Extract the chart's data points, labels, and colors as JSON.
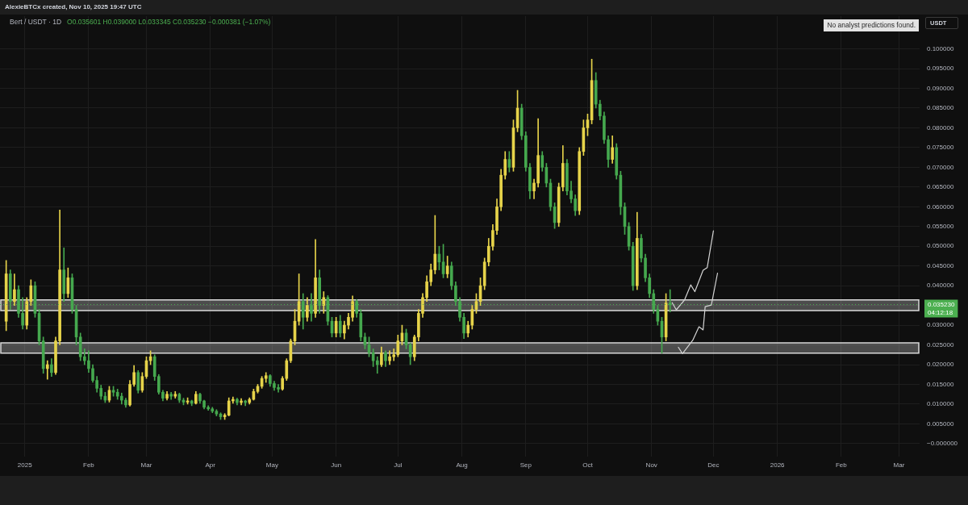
{
  "chart_data": {
    "type": "candlestick",
    "title": "Bert / USDT · 1D",
    "subtitle": "O0.035601 H0.039000 L0.033345 C0.035230 −0.000381 (−1.07%)",
    "ylabel": "USDT",
    "annotations": [
      "AlexieBTCx created, Nov 10, 2025 19:47 UTC",
      "No analyst predictions found."
    ],
    "xlim": [
      "2024-12-20",
      "2026-03-11"
    ],
    "xticks": [
      {
        "value": "2025-01-01",
        "label": "2025"
      },
      {
        "value": "2025-02-01",
        "label": "Feb"
      },
      {
        "value": "2025-03-01",
        "label": "Mar"
      },
      {
        "value": "2025-04-01",
        "label": "Apr"
      },
      {
        "value": "2025-05-01",
        "label": "May"
      },
      {
        "value": "2025-06-01",
        "label": "Jun"
      },
      {
        "value": "2025-07-01",
        "label": "Jul"
      },
      {
        "value": "2025-08-01",
        "label": "Aug"
      },
      {
        "value": "2025-09-01",
        "label": "Sep"
      },
      {
        "value": "2025-10-01",
        "label": "Oct"
      },
      {
        "value": "2025-11-01",
        "label": "Nov"
      },
      {
        "value": "2025-12-01",
        "label": "Dec"
      },
      {
        "value": "2026-01-01",
        "label": "2026"
      },
      {
        "value": "2026-02-01",
        "label": "Feb"
      },
      {
        "value": "2026-03-01",
        "label": "Mar"
      }
    ],
    "ylim": [
      -0.0033,
      0.1083
    ],
    "yticks": [
      {
        "value": 0,
        "label": "−0.000000"
      },
      {
        "value": 0.005,
        "label": "0.005000"
      },
      {
        "value": 0.01,
        "label": "0.010000"
      },
      {
        "value": 0.015,
        "label": "0.015000"
      },
      {
        "value": 0.02,
        "label": "0.020000"
      },
      {
        "value": 0.025,
        "label": "0.025000"
      },
      {
        "value": 0.03,
        "label": "0.030000"
      },
      {
        "value": 0.035,
        "label": null
      },
      {
        "value": 0.04,
        "label": "0.040000"
      },
      {
        "value": 0.045,
        "label": "0.045000"
      },
      {
        "value": 0.05,
        "label": "0.050000"
      },
      {
        "value": 0.055,
        "label": "0.055000"
      },
      {
        "value": 0.06,
        "label": "0.060000"
      },
      {
        "value": 0.065,
        "label": "0.065000"
      },
      {
        "value": 0.07,
        "label": "0.070000"
      },
      {
        "value": 0.075,
        "label": "0.075000"
      },
      {
        "value": 0.08,
        "label": "0.080000"
      },
      {
        "value": 0.085,
        "label": "0.085000"
      },
      {
        "value": 0.09,
        "label": "0.090000"
      },
      {
        "value": 0.095,
        "label": "0.095000"
      },
      {
        "value": 0.1,
        "label": "0.100000"
      }
    ],
    "grid": true,
    "bands": [
      {
        "axis": "y",
        "from": 0.0337,
        "to": 0.0364,
        "color": "#d9d9d9"
      },
      {
        "axis": "y",
        "from": 0.0229,
        "to": 0.0255,
        "color": "#d9d9d9"
      }
    ],
    "ref_lines": [
      {
        "axis": "y",
        "value": 0.03523,
        "label": "0.035230\n04:12:18",
        "color": "#4caf50",
        "line_style": "dotted"
      }
    ],
    "series": [
      {
        "x": [
          "2024-12-23",
          "2024-12-25",
          "2024-12-27",
          "2024-12-29",
          "2024-12-31",
          "2025-01-02",
          "2025-01-04",
          "2025-01-06",
          "2025-01-08",
          "2025-01-10",
          "2025-01-12",
          "2025-01-14",
          "2025-01-16",
          "2025-01-18",
          "2025-01-20",
          "2025-01-22",
          "2025-01-24",
          "2025-01-26",
          "2025-01-28",
          "2025-01-30",
          "2025-02-01",
          "2025-02-03",
          "2025-02-05",
          "2025-02-07",
          "2025-02-09",
          "2025-02-11",
          "2025-02-13",
          "2025-02-15",
          "2025-02-17",
          "2025-02-19",
          "2025-02-21",
          "2025-02-23",
          "2025-02-25",
          "2025-02-27",
          "2025-03-01",
          "2025-03-03",
          "2025-03-05",
          "2025-03-07",
          "2025-03-09",
          "2025-03-11",
          "2025-03-13",
          "2025-03-15",
          "2025-03-17",
          "2025-03-19",
          "2025-03-21",
          "2025-03-23",
          "2025-03-25",
          "2025-03-27",
          "2025-03-29",
          "2025-03-31",
          "2025-04-02",
          "2025-04-04",
          "2025-04-06",
          "2025-04-08",
          "2025-04-10",
          "2025-04-12",
          "2025-04-14",
          "2025-04-16",
          "2025-04-18",
          "2025-04-20",
          "2025-04-22",
          "2025-04-24",
          "2025-04-26",
          "2025-04-28",
          "2025-04-30",
          "2025-05-02",
          "2025-05-04",
          "2025-05-06",
          "2025-05-08",
          "2025-05-10",
          "2025-05-12",
          "2025-05-14",
          "2025-05-16",
          "2025-05-18",
          "2025-05-20",
          "2025-05-22",
          "2025-05-24",
          "2025-05-26",
          "2025-05-28",
          "2025-05-30",
          "2025-06-01",
          "2025-06-03",
          "2025-06-05",
          "2025-06-07",
          "2025-06-09",
          "2025-06-11",
          "2025-06-13",
          "2025-06-15",
          "2025-06-17",
          "2025-06-19",
          "2025-06-21",
          "2025-06-23",
          "2025-06-25",
          "2025-06-27",
          "2025-06-29",
          "2025-07-01",
          "2025-07-03",
          "2025-07-05",
          "2025-07-07",
          "2025-07-09",
          "2025-07-11",
          "2025-07-13",
          "2025-07-15",
          "2025-07-17",
          "2025-07-19",
          "2025-07-21",
          "2025-07-23",
          "2025-07-25",
          "2025-07-27",
          "2025-07-29",
          "2025-07-31",
          "2025-08-02",
          "2025-08-04",
          "2025-08-06",
          "2025-08-08",
          "2025-08-10",
          "2025-08-12",
          "2025-08-14",
          "2025-08-16",
          "2025-08-18",
          "2025-08-20",
          "2025-08-22",
          "2025-08-24",
          "2025-08-26",
          "2025-08-28",
          "2025-08-30",
          "2025-09-01",
          "2025-09-03",
          "2025-09-05",
          "2025-09-07",
          "2025-09-09",
          "2025-09-11",
          "2025-09-13",
          "2025-09-15",
          "2025-09-17",
          "2025-09-19",
          "2025-09-21",
          "2025-09-23",
          "2025-09-25",
          "2025-09-27",
          "2025-09-29",
          "2025-10-01",
          "2025-10-03",
          "2025-10-05",
          "2025-10-07",
          "2025-10-09",
          "2025-10-11",
          "2025-10-13",
          "2025-10-15",
          "2025-10-17",
          "2025-10-19",
          "2025-10-21",
          "2025-10-23",
          "2025-10-25",
          "2025-10-27",
          "2025-10-29",
          "2025-10-31",
          "2025-11-02",
          "2025-11-04",
          "2025-11-06",
          "2025-11-08",
          "2025-11-10"
        ],
        "ohlc": [
          [
            0.031,
            0.0464,
            0.0286,
            0.043
          ],
          [
            0.043,
            0.044,
            0.034,
            0.036
          ],
          [
            0.036,
            0.043,
            0.035,
            0.039
          ],
          [
            0.039,
            0.04,
            0.032,
            0.033
          ],
          [
            0.033,
            0.037,
            0.029,
            0.03
          ],
          [
            0.03,
            0.037,
            0.029,
            0.036
          ],
          [
            0.036,
            0.0415,
            0.035,
            0.04
          ],
          [
            0.04,
            0.041,
            0.032,
            0.033
          ],
          [
            0.033,
            0.034,
            0.025,
            0.026
          ],
          [
            0.026,
            0.027,
            0.0178,
            0.019
          ],
          [
            0.019,
            0.021,
            0.0163,
            0.02
          ],
          [
            0.02,
            0.0215,
            0.017,
            0.018
          ],
          [
            0.018,
            0.027,
            0.0175,
            0.026
          ],
          [
            0.026,
            0.0592,
            0.025,
            0.044
          ],
          [
            0.044,
            0.0496,
            0.036,
            0.038
          ],
          [
            0.038,
            0.0445,
            0.037,
            0.042
          ],
          [
            0.042,
            0.043,
            0.033,
            0.034
          ],
          [
            0.034,
            0.035,
            0.025,
            0.027
          ],
          [
            0.027,
            0.028,
            0.021,
            0.022
          ],
          [
            0.022,
            0.024,
            0.02,
            0.021
          ],
          [
            0.021,
            0.0235,
            0.018,
            0.019
          ],
          [
            0.019,
            0.02,
            0.0155,
            0.016
          ],
          [
            0.016,
            0.017,
            0.013,
            0.014
          ],
          [
            0.014,
            0.0148,
            0.0112,
            0.012
          ],
          [
            0.012,
            0.013,
            0.0104,
            0.011
          ],
          [
            0.011,
            0.0145,
            0.0105,
            0.0135
          ],
          [
            0.0135,
            0.0145,
            0.012,
            0.013
          ],
          [
            0.013,
            0.0138,
            0.0112,
            0.012
          ],
          [
            0.012,
            0.0128,
            0.01,
            0.011
          ],
          [
            0.011,
            0.0115,
            0.0092,
            0.0098
          ],
          [
            0.0098,
            0.016,
            0.0095,
            0.015
          ],
          [
            0.015,
            0.0198,
            0.0145,
            0.018
          ],
          [
            0.018,
            0.0185,
            0.0128,
            0.0135
          ],
          [
            0.0135,
            0.018,
            0.013,
            0.017
          ],
          [
            0.017,
            0.022,
            0.0165,
            0.021
          ],
          [
            0.021,
            0.0235,
            0.02,
            0.022
          ],
          [
            0.022,
            0.0225,
            0.016,
            0.017
          ],
          [
            0.017,
            0.0175,
            0.0125,
            0.013
          ],
          [
            0.013,
            0.0135,
            0.0108,
            0.0115
          ],
          [
            0.0115,
            0.0132,
            0.011,
            0.0125
          ],
          [
            0.0125,
            0.013,
            0.0112,
            0.012
          ],
          [
            0.012,
            0.0132,
            0.0115,
            0.0125
          ],
          [
            0.0125,
            0.0128,
            0.0104,
            0.011
          ],
          [
            0.011,
            0.0115,
            0.0098,
            0.0105
          ],
          [
            0.0105,
            0.0116,
            0.01,
            0.0108
          ],
          [
            0.0108,
            0.011,
            0.0096,
            0.0102
          ],
          [
            0.0102,
            0.0132,
            0.01,
            0.0125
          ],
          [
            0.0125,
            0.0128,
            0.0102,
            0.0108
          ],
          [
            0.0108,
            0.011,
            0.0088,
            0.0092
          ],
          [
            0.0092,
            0.0096,
            0.0084,
            0.0088
          ],
          [
            0.0088,
            0.0092,
            0.0078,
            0.0082
          ],
          [
            0.0082,
            0.0086,
            0.007,
            0.0075
          ],
          [
            0.0075,
            0.0078,
            0.0061,
            0.0068
          ],
          [
            0.0068,
            0.0076,
            0.0061,
            0.0072
          ],
          [
            0.0072,
            0.0116,
            0.007,
            0.0108
          ],
          [
            0.0108,
            0.0118,
            0.0102,
            0.0112
          ],
          [
            0.0112,
            0.0115,
            0.0098,
            0.0104
          ],
          [
            0.0104,
            0.0114,
            0.0098,
            0.0108
          ],
          [
            0.0108,
            0.011,
            0.0096,
            0.0104
          ],
          [
            0.0104,
            0.0116,
            0.01,
            0.0112
          ],
          [
            0.0112,
            0.0138,
            0.011,
            0.0132
          ],
          [
            0.0132,
            0.015,
            0.0128,
            0.0145
          ],
          [
            0.0145,
            0.017,
            0.014,
            0.0165
          ],
          [
            0.0165,
            0.018,
            0.0155,
            0.0172
          ],
          [
            0.0172,
            0.0175,
            0.0145,
            0.0152
          ],
          [
            0.0152,
            0.0158,
            0.0135,
            0.0142
          ],
          [
            0.0142,
            0.015,
            0.013,
            0.0138
          ],
          [
            0.0138,
            0.017,
            0.0135,
            0.0165
          ],
          [
            0.0165,
            0.0215,
            0.016,
            0.021
          ],
          [
            0.021,
            0.0265,
            0.0205,
            0.026
          ],
          [
            0.026,
            0.034,
            0.025,
            0.031
          ],
          [
            0.031,
            0.043,
            0.03,
            0.036
          ],
          [
            0.036,
            0.038,
            0.029,
            0.032
          ],
          [
            0.032,
            0.037,
            0.031,
            0.035
          ],
          [
            0.035,
            0.038,
            0.031,
            0.033
          ],
          [
            0.033,
            0.0517,
            0.032,
            0.042
          ],
          [
            0.042,
            0.044,
            0.033,
            0.035
          ],
          [
            0.035,
            0.0385,
            0.033,
            0.037
          ],
          [
            0.037,
            0.0375,
            0.03,
            0.031
          ],
          [
            0.031,
            0.032,
            0.027,
            0.028
          ],
          [
            0.028,
            0.032,
            0.027,
            0.031
          ],
          [
            0.031,
            0.0325,
            0.027,
            0.028
          ],
          [
            0.028,
            0.031,
            0.0265,
            0.03
          ],
          [
            0.03,
            0.033,
            0.029,
            0.032
          ],
          [
            0.032,
            0.0374,
            0.031,
            0.036
          ],
          [
            0.036,
            0.0365,
            0.032,
            0.033
          ],
          [
            0.033,
            0.034,
            0.026,
            0.027
          ],
          [
            0.027,
            0.028,
            0.024,
            0.025
          ],
          [
            0.025,
            0.027,
            0.022,
            0.023
          ],
          [
            0.023,
            0.024,
            0.0195,
            0.021
          ],
          [
            0.021,
            0.022,
            0.0178,
            0.02
          ],
          [
            0.02,
            0.0245,
            0.0195,
            0.023
          ],
          [
            0.023,
            0.0235,
            0.0195,
            0.021
          ],
          [
            0.021,
            0.0235,
            0.02,
            0.022
          ],
          [
            0.022,
            0.024,
            0.021,
            0.0225
          ],
          [
            0.0225,
            0.0275,
            0.022,
            0.026
          ],
          [
            0.026,
            0.03,
            0.025,
            0.028
          ],
          [
            0.028,
            0.029,
            0.024,
            0.025
          ],
          [
            0.025,
            0.0255,
            0.02,
            0.022
          ],
          [
            0.022,
            0.0275,
            0.021,
            0.027
          ],
          [
            0.027,
            0.034,
            0.026,
            0.033
          ],
          [
            0.033,
            0.038,
            0.032,
            0.037
          ],
          [
            0.037,
            0.0425,
            0.036,
            0.041
          ],
          [
            0.041,
            0.0455,
            0.04,
            0.044
          ],
          [
            0.044,
            0.0578,
            0.043,
            0.048
          ],
          [
            0.048,
            0.05,
            0.044,
            0.046
          ],
          [
            0.046,
            0.0505,
            0.042,
            0.043
          ],
          [
            0.043,
            0.0475,
            0.042,
            0.045
          ],
          [
            0.045,
            0.046,
            0.039,
            0.04
          ],
          [
            0.04,
            0.041,
            0.035,
            0.036
          ],
          [
            0.036,
            0.037,
            0.031,
            0.032
          ],
          [
            0.032,
            0.033,
            0.0266,
            0.028
          ],
          [
            0.028,
            0.031,
            0.027,
            0.03
          ],
          [
            0.03,
            0.035,
            0.029,
            0.034
          ],
          [
            0.034,
            0.038,
            0.033,
            0.036
          ],
          [
            0.036,
            0.042,
            0.035,
            0.04
          ],
          [
            0.04,
            0.047,
            0.039,
            0.046
          ],
          [
            0.046,
            0.052,
            0.045,
            0.05
          ],
          [
            0.05,
            0.0555,
            0.049,
            0.054
          ],
          [
            0.054,
            0.062,
            0.053,
            0.06
          ],
          [
            0.06,
            0.0695,
            0.059,
            0.068
          ],
          [
            0.068,
            0.074,
            0.067,
            0.072
          ],
          [
            0.072,
            0.074,
            0.0688,
            0.07
          ],
          [
            0.07,
            0.082,
            0.069,
            0.08
          ],
          [
            0.08,
            0.0895,
            0.079,
            0.085
          ],
          [
            0.085,
            0.086,
            0.077,
            0.078
          ],
          [
            0.078,
            0.079,
            0.069,
            0.07
          ],
          [
            0.07,
            0.071,
            0.062,
            0.064
          ],
          [
            0.064,
            0.067,
            0.062,
            0.066
          ],
          [
            0.066,
            0.0823,
            0.065,
            0.073
          ],
          [
            0.073,
            0.074,
            0.069,
            0.07
          ],
          [
            0.07,
            0.071,
            0.065,
            0.066
          ],
          [
            0.066,
            0.067,
            0.059,
            0.06
          ],
          [
            0.06,
            0.061,
            0.0545,
            0.056
          ],
          [
            0.056,
            0.066,
            0.055,
            0.065
          ],
          [
            0.065,
            0.0755,
            0.064,
            0.071
          ],
          [
            0.071,
            0.072,
            0.063,
            0.064
          ],
          [
            0.064,
            0.0665,
            0.061,
            0.062
          ],
          [
            0.062,
            0.063,
            0.0578,
            0.059
          ],
          [
            0.059,
            0.075,
            0.058,
            0.074
          ],
          [
            0.074,
            0.082,
            0.073,
            0.08
          ],
          [
            0.08,
            0.0835,
            0.078,
            0.082
          ],
          [
            0.082,
            0.0974,
            0.081,
            0.092
          ],
          [
            0.092,
            0.094,
            0.085,
            0.086
          ],
          [
            0.086,
            0.087,
            0.082,
            0.083
          ],
          [
            0.083,
            0.084,
            0.076,
            0.077
          ],
          [
            0.077,
            0.078,
            0.07,
            0.072
          ],
          [
            0.072,
            0.078,
            0.071,
            0.075
          ],
          [
            0.075,
            0.076,
            0.067,
            0.068
          ],
          [
            0.068,
            0.069,
            0.058,
            0.06
          ],
          [
            0.06,
            0.061,
            0.053,
            0.055
          ],
          [
            0.055,
            0.056,
            0.049,
            0.05
          ],
          [
            0.05,
            0.051,
            0.0388,
            0.04
          ],
          [
            0.04,
            0.0586,
            0.039,
            0.052
          ],
          [
            0.052,
            0.053,
            0.046,
            0.047
          ],
          [
            0.047,
            0.048,
            0.041,
            0.042
          ],
          [
            0.042,
            0.043,
            0.037,
            0.038
          ],
          [
            0.038,
            0.039,
            0.033,
            0.034
          ],
          [
            0.034,
            0.035,
            0.03,
            0.031
          ],
          [
            0.031,
            0.032,
            0.0229,
            0.027
          ],
          [
            0.027,
            0.038,
            0.026,
            0.0356
          ],
          [
            0.035601,
            0.039,
            0.033345,
            0.03523
          ]
        ],
        "colors": [
          "#e6d34a",
          "#45a84e",
          "#e6d34a",
          "#45a84e",
          "#45a84e",
          "#e6d34a",
          "#e6d34a",
          "#45a84e",
          "#45a84e",
          "#45a84e",
          "#e6d34a",
          "#45a84e",
          "#e6d34a",
          "#e6d34a",
          "#45a84e",
          "#e6d34a",
          "#45a84e",
          "#45a84e",
          "#45a84e",
          "#45a84e",
          "#45a84e",
          "#45a84e",
          "#45a84e",
          "#45a84e",
          "#45a84e",
          "#e6d34a",
          "#45a84e",
          "#45a84e",
          "#45a84e",
          "#45a84e",
          "#e6d34a",
          "#e6d34a",
          "#45a84e",
          "#e6d34a",
          "#e6d34a",
          "#e6d34a",
          "#45a84e",
          "#45a84e",
          "#45a84e",
          "#e6d34a",
          "#45a84e",
          "#e6d34a",
          "#45a84e",
          "#45a84e",
          "#e6d34a",
          "#45a84e",
          "#e6d34a",
          "#45a84e",
          "#45a84e",
          "#45a84e",
          "#45a84e",
          "#45a84e",
          "#45a84e",
          "#e6d34a",
          "#e6d34a",
          "#e6d34a",
          "#45a84e",
          "#e6d34a",
          "#45a84e",
          "#e6d34a",
          "#e6d34a",
          "#e6d34a",
          "#e6d34a",
          "#e6d34a",
          "#45a84e",
          "#45a84e",
          "#45a84e",
          "#e6d34a",
          "#e6d34a",
          "#e6d34a",
          "#e6d34a",
          "#e6d34a",
          "#45a84e",
          "#e6d34a",
          "#45a84e",
          "#e6d34a",
          "#45a84e",
          "#e6d34a",
          "#45a84e",
          "#45a84e",
          "#e6d34a",
          "#45a84e",
          "#e6d34a",
          "#e6d34a",
          "#e6d34a",
          "#45a84e",
          "#45a84e",
          "#45a84e",
          "#45a84e",
          "#45a84e",
          "#45a84e",
          "#e6d34a",
          "#45a84e",
          "#e6d34a",
          "#e6d34a",
          "#e6d34a",
          "#e6d34a",
          "#45a84e",
          "#45a84e",
          "#e6d34a",
          "#e6d34a",
          "#e6d34a",
          "#e6d34a",
          "#e6d34a",
          "#e6d34a",
          "#45a84e",
          "#45a84e",
          "#e6d34a",
          "#45a84e",
          "#45a84e",
          "#45a84e",
          "#45a84e",
          "#e6d34a",
          "#e6d34a",
          "#e6d34a",
          "#e6d34a",
          "#e6d34a",
          "#e6d34a",
          "#e6d34a",
          "#e6d34a",
          "#e6d34a",
          "#e6d34a",
          "#45a84e",
          "#e6d34a",
          "#e6d34a",
          "#45a84e",
          "#45a84e",
          "#45a84e",
          "#e6d34a",
          "#e6d34a",
          "#45a84e",
          "#45a84e",
          "#45a84e",
          "#45a84e",
          "#e6d34a",
          "#e6d34a",
          "#45a84e",
          "#45a84e",
          "#45a84e",
          "#e6d34a",
          "#e6d34a",
          "#e6d34a",
          "#e6d34a",
          "#45a84e",
          "#45a84e",
          "#45a84e",
          "#45a84e",
          "#e6d34a",
          "#45a84e",
          "#45a84e",
          "#45a84e",
          "#45a84e",
          "#45a84e",
          "#e6d34a",
          "#45a84e",
          "#45a84e",
          "#45a84e",
          "#45a84e",
          "#45a84e",
          "#45a84e",
          "#e6d34a",
          "#45a84e"
        ]
      },
      {
        "type": "line",
        "color": "#d4d4d4",
        "x": [
          "2025-11-11",
          "2025-11-13",
          "2025-11-17",
          "2025-11-20",
          "2025-11-22",
          "2025-11-26",
          "2025-11-28",
          "2025-12-01"
        ],
        "values": [
          0.0357,
          0.0339,
          0.0364,
          0.0402,
          0.0385,
          0.0439,
          0.0446,
          0.0539
        ]
      },
      {
        "type": "line",
        "color": "#d4d4d4",
        "x": [
          "2025-11-14",
          "2025-11-16",
          "2025-11-21",
          "2025-11-24",
          "2025-11-26",
          "2025-11-27",
          "2025-11-30",
          "2025-12-03"
        ],
        "values": [
          0.0244,
          0.0228,
          0.0262,
          0.0296,
          0.0288,
          0.0347,
          0.0351,
          0.0432
        ]
      }
    ]
  }
}
